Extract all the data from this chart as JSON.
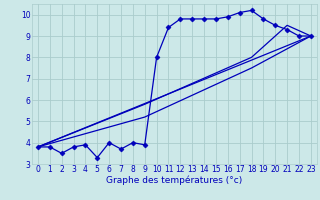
{
  "xlabel": "Graphe des températures (°c)",
  "bg_color": "#cce8e8",
  "line_color": "#0000bb",
  "grid_color": "#aacccc",
  "xlim": [
    -0.5,
    23.5
  ],
  "ylim": [
    3,
    10.5
  ],
  "xticks": [
    0,
    1,
    2,
    3,
    4,
    5,
    6,
    7,
    8,
    9,
    10,
    11,
    12,
    13,
    14,
    15,
    16,
    17,
    18,
    19,
    20,
    21,
    22,
    23
  ],
  "yticks": [
    3,
    4,
    5,
    6,
    7,
    8,
    9,
    10
  ],
  "main_x": [
    0,
    1,
    2,
    3,
    4,
    5,
    6,
    7,
    8,
    9,
    10,
    11,
    12,
    13,
    14,
    15,
    16,
    17,
    18,
    19,
    20,
    21,
    22,
    23
  ],
  "main_y": [
    3.8,
    3.8,
    3.5,
    3.8,
    3.9,
    3.3,
    4.0,
    3.7,
    4.0,
    3.9,
    8.0,
    9.4,
    9.8,
    9.8,
    9.8,
    9.8,
    9.9,
    10.1,
    10.2,
    9.8,
    9.5,
    9.3,
    9.0,
    9.0
  ],
  "line2_x": [
    0,
    23
  ],
  "line2_y": [
    3.8,
    9.0
  ],
  "line3_x": [
    0,
    9,
    18,
    23
  ],
  "line3_y": [
    3.8,
    5.2,
    7.5,
    9.0
  ],
  "line4_x": [
    0,
    9,
    18,
    21,
    23
  ],
  "line4_y": [
    3.8,
    5.8,
    8.0,
    9.5,
    9.0
  ]
}
